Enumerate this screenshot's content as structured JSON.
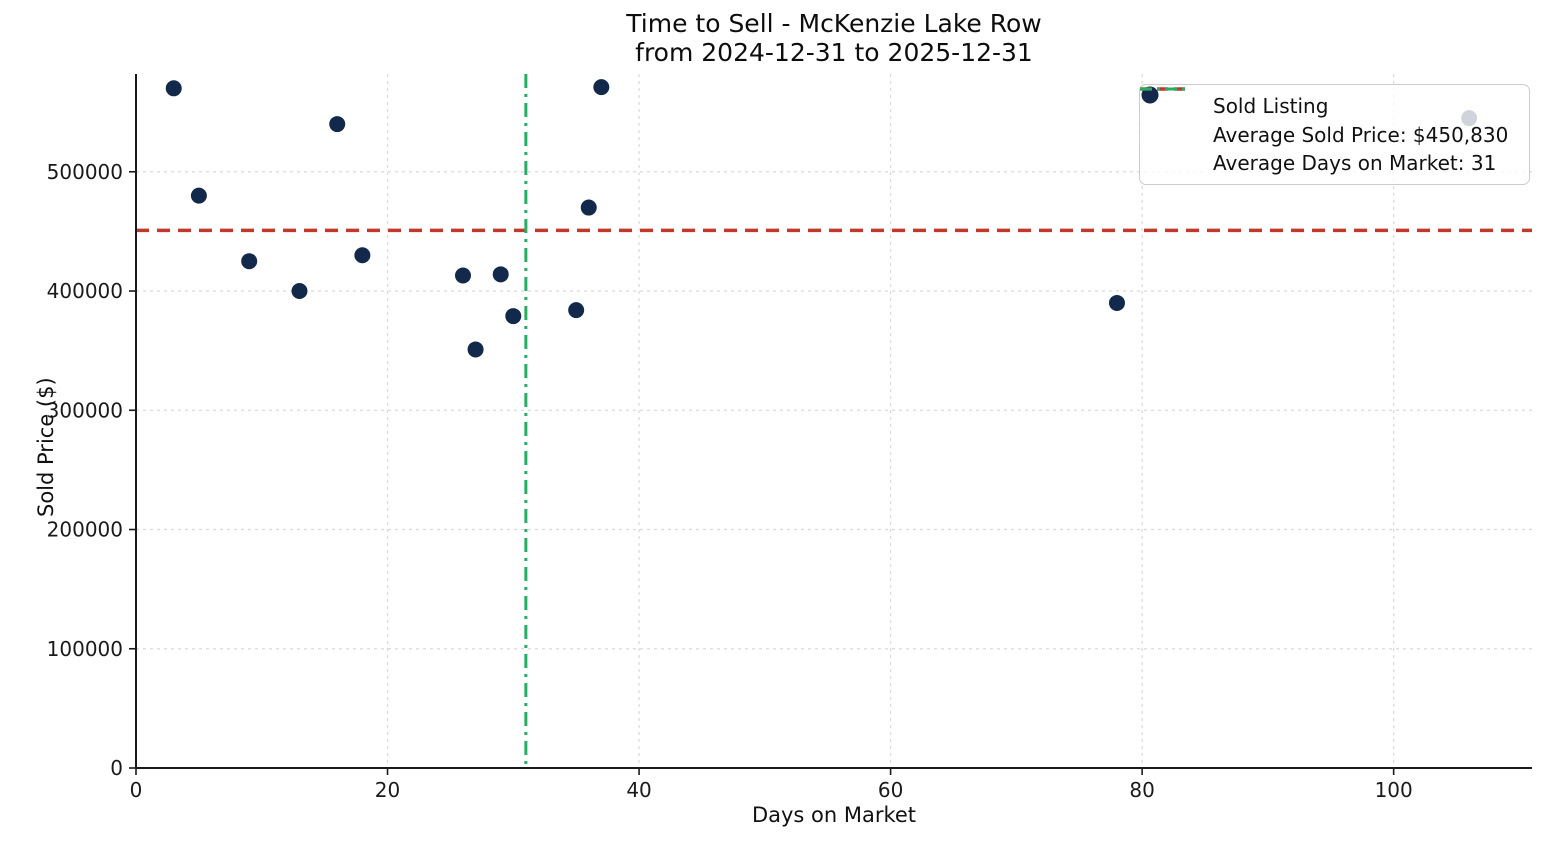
{
  "chart_data": {
    "type": "scatter",
    "title": "Time to Sell - McKenzie Lake Row",
    "subtitle": "from 2024-12-31 to 2025-12-31",
    "xlabel": "Days on Market",
    "ylabel": "Sold Price ($)",
    "xlim": [
      0,
      111
    ],
    "ylim": [
      0,
      582000
    ],
    "x_ticks": [
      0,
      20,
      40,
      60,
      80,
      100
    ],
    "y_ticks": [
      0,
      100000,
      200000,
      300000,
      400000,
      500000
    ],
    "grid": "dashed",
    "grid_color": "#d9d9d9",
    "spine_color": "#1a1a1a",
    "text_color": "#1a1a1a",
    "legend_position": "upper right",
    "series": [
      {
        "name": "Sold Listing",
        "type": "scatter",
        "color": "#13294b",
        "points": [
          [
            3,
            570000
          ],
          [
            5,
            480000
          ],
          [
            9,
            425000
          ],
          [
            13,
            400000
          ],
          [
            16,
            540000
          ],
          [
            18,
            430000
          ],
          [
            26,
            413000
          ],
          [
            27,
            351000
          ],
          [
            29,
            414000
          ],
          [
            30,
            379000
          ],
          [
            35,
            384000
          ],
          [
            36,
            470000
          ],
          [
            37,
            571000
          ],
          [
            78,
            390000
          ],
          [
            106,
            545000
          ]
        ]
      },
      {
        "name": "Average Sold Price: $450,830",
        "type": "hline",
        "value": 450830,
        "color": "#c0392b",
        "line_style": "dashed"
      },
      {
        "name": "Average Days on Market: 31",
        "type": "vline",
        "value": 31,
        "color": "#27ae60",
        "line_style": "dashdot"
      }
    ]
  }
}
